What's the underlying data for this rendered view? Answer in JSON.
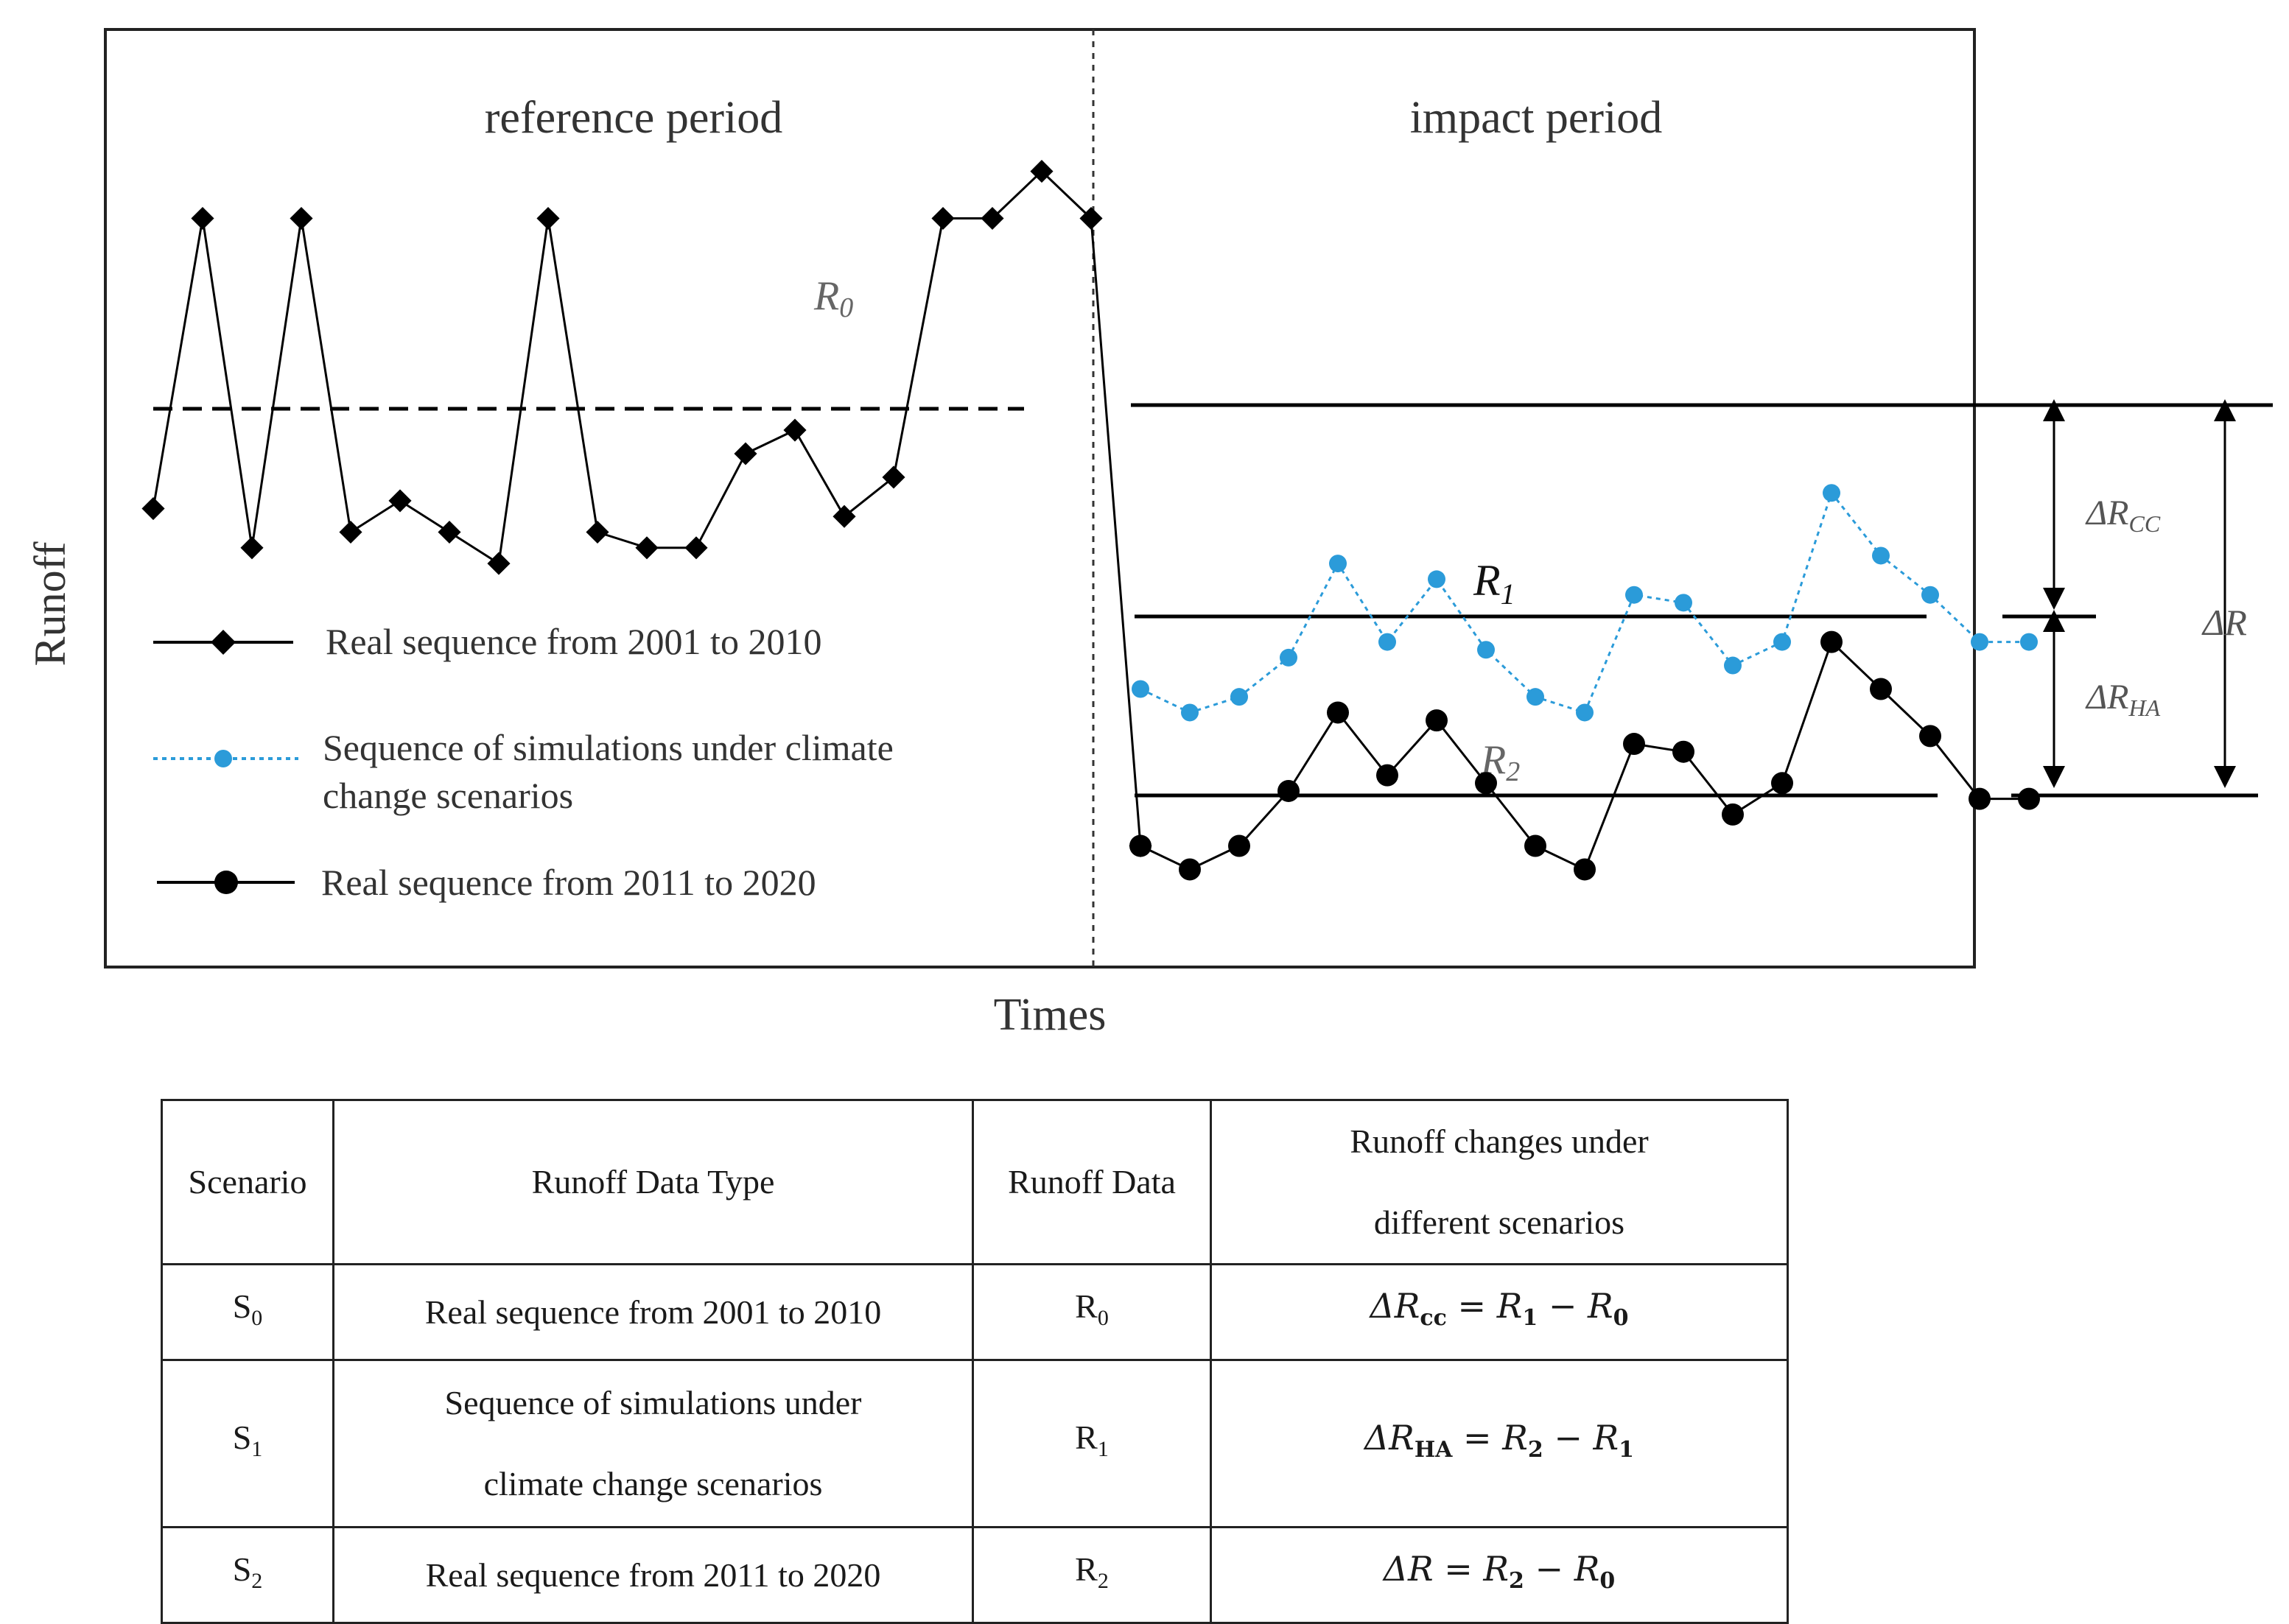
{
  "diagram": {
    "period_left": "reference period",
    "period_right": "impact period",
    "y_axis_label": "Runoff",
    "x_axis_label": "Times",
    "r0_label": "R0",
    "r1_label": "R1",
    "r2_label": "R2",
    "delta_cc_label": "ΔRCC",
    "delta_ha_label": "ΔRHA",
    "delta_r_label": "ΔR",
    "legend": [
      {
        "text_lines": [
          "Real sequence from 2001 to 2010"
        ],
        "marker": "diamond",
        "color": "#000000"
      },
      {
        "text_lines": [
          "Sequence of simulations under climate",
          "change scenarios"
        ],
        "marker": "dot-dashed",
        "color": "#2b9bd9"
      },
      {
        "text_lines": [
          "Real sequence from 2011 to 2020"
        ],
        "marker": "circle",
        "color": "#000000"
      }
    ],
    "colors": {
      "line": "#000000",
      "simulation": "#2b9bd9",
      "label_gray": "#555555"
    }
  },
  "chart_data": {
    "type": "line",
    "title": "",
    "xlabel": "Times",
    "ylabel": "Runoff",
    "ylim": [
      0,
      100
    ],
    "series": [
      {
        "name": "Real sequence from 2001 to 2010",
        "x": [
          1,
          2,
          3,
          4,
          5,
          6,
          7,
          8,
          9,
          10,
          11,
          12,
          13,
          14,
          15,
          16,
          17,
          18,
          19,
          20,
          21
        ],
        "values": [
          53,
          90,
          48,
          90,
          50,
          54,
          50,
          46,
          90,
          50,
          48,
          48,
          60,
          63,
          52,
          57,
          90,
          90,
          96,
          90,
          10
        ]
      },
      {
        "name": "Sequence of simulations under climate change scenarios",
        "x": [
          21,
          22,
          23,
          24,
          25,
          26,
          27,
          28,
          29,
          30,
          31,
          32,
          33,
          34,
          35,
          36,
          37,
          38,
          39
        ],
        "values": [
          30,
          27,
          29,
          34,
          46,
          36,
          44,
          35,
          29,
          27,
          42,
          41,
          33,
          36,
          55,
          47,
          42,
          36,
          36
        ]
      },
      {
        "name": "Real sequence from 2011 to 2020",
        "x": [
          21,
          22,
          23,
          24,
          25,
          26,
          27,
          28,
          29,
          30,
          31,
          32,
          33,
          34,
          35,
          36,
          37,
          38,
          39
        ],
        "values": [
          10,
          7,
          10,
          17,
          27,
          19,
          26,
          18,
          10,
          7,
          23,
          22,
          14,
          18,
          36,
          30,
          24,
          16,
          16
        ]
      }
    ],
    "reference_lines": [
      {
        "name": "R0",
        "value": 60
      },
      {
        "name": "R1",
        "value": 36
      },
      {
        "name": "R2",
        "value": 18
      }
    ]
  },
  "table": {
    "headers": [
      "Scenario",
      "Runoff Data Type",
      "Runoff Data",
      "Runoff changes under different scenarios"
    ],
    "header_type_lines": [
      "Runoff changes under",
      "different scenarios"
    ],
    "rows": [
      {
        "scenario": "S0",
        "type_lines": [
          "Real sequence from 2001 to 2010"
        ],
        "data": "R0",
        "formula": "ΔRcc = R1 − R0"
      },
      {
        "scenario": "S1",
        "type_lines": [
          "Sequence of simulations under",
          "climate change scenarios"
        ],
        "data": "R1",
        "formula": "ΔRHA = R2 − R1"
      },
      {
        "scenario": "S2",
        "type_lines": [
          "Real sequence from 2011 to 2020"
        ],
        "data": "R2",
        "formula": "ΔR = R2 − R0"
      }
    ]
  }
}
